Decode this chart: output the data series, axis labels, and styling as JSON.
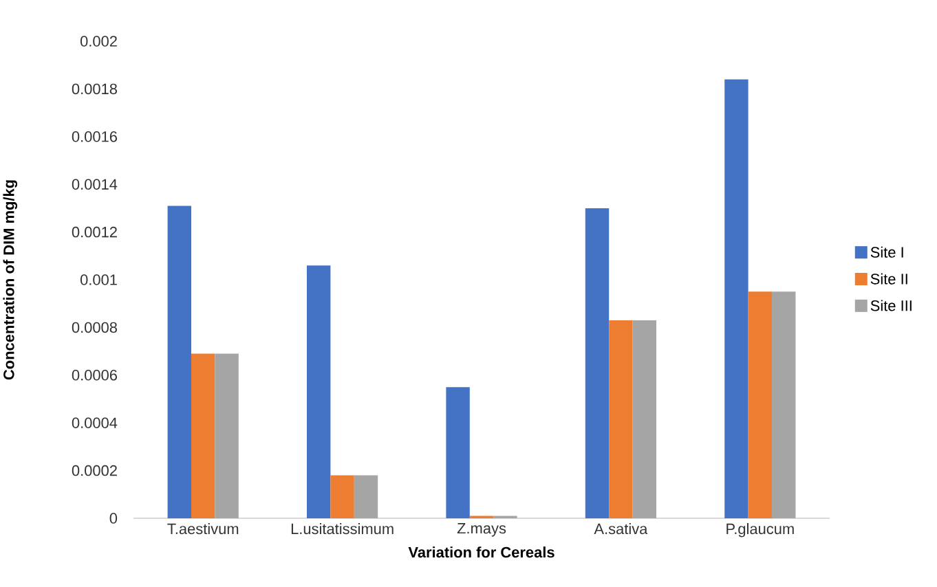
{
  "chart_data": {
    "type": "bar",
    "xlabel": "Variation for Cereals",
    "ylabel": "Concentration of DIM mg/kg",
    "categories": [
      "T.aestivum",
      "L.usitatissimum",
      "Z.mays",
      "A.sativa",
      "P.glaucum"
    ],
    "series": [
      {
        "name": "Site I",
        "color": "#4472c4",
        "values": [
          0.00131,
          0.00106,
          0.00055,
          0.0013,
          0.00184
        ]
      },
      {
        "name": "Site II",
        "color": "#ed7d31",
        "values": [
          0.00069,
          0.00018,
          1e-05,
          0.00083,
          0.00095
        ]
      },
      {
        "name": "Site III",
        "color": "#a5a5a5",
        "values": [
          0.00069,
          0.00018,
          1e-05,
          0.00083,
          0.00095
        ]
      }
    ],
    "ylim": [
      0,
      0.002
    ],
    "yticks": [
      0,
      0.0002,
      0.0004,
      0.0006,
      0.0008,
      0.001,
      0.0012,
      0.0014,
      0.0016,
      0.0018,
      0.002
    ],
    "grid": false,
    "legend": "right"
  }
}
